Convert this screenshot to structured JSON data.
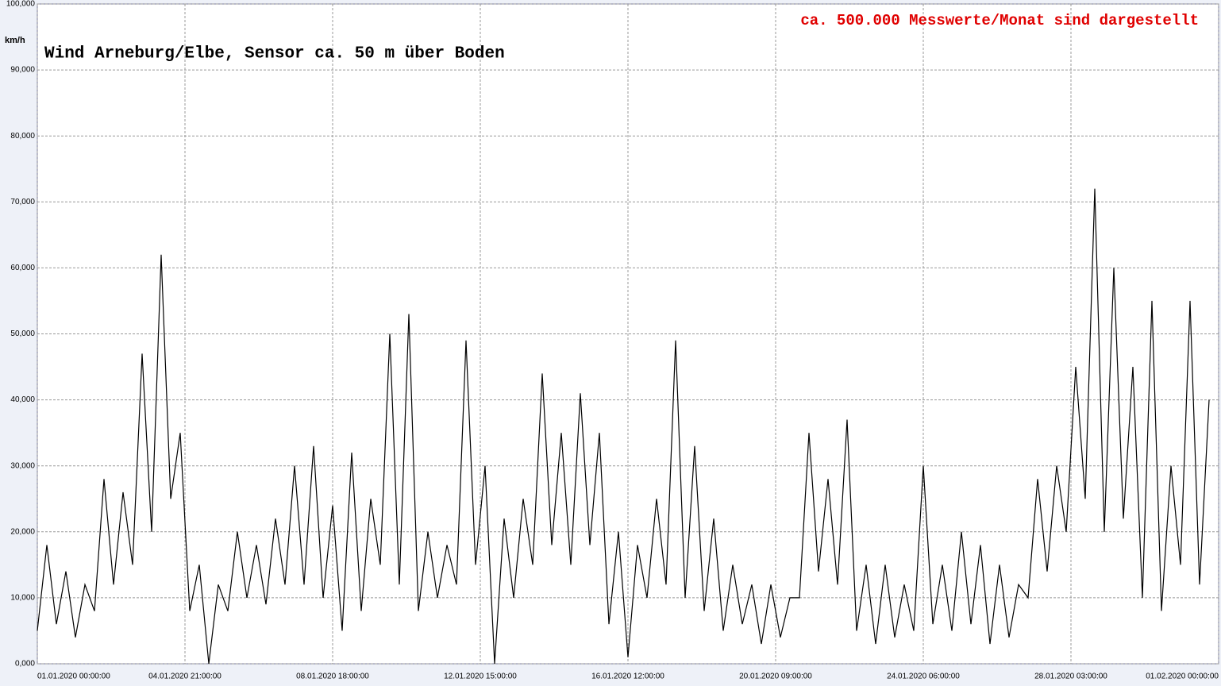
{
  "chart_data": {
    "type": "line",
    "title": "Wind  Arneburg/Elbe, Sensor ca. 50 m über Boden",
    "annotation": "ca. 500.000 Messwerte/Monat sind dargestellt",
    "y_label": "km/h",
    "grid": true,
    "x": [
      "2020-01-01T00:00",
      "2020-01-01T06:00",
      "2020-01-01T12:00",
      "2020-01-01T18:00",
      "2020-01-02T00:00",
      "2020-01-02T06:00",
      "2020-01-02T12:00",
      "2020-01-02T18:00",
      "2020-01-03T00:00",
      "2020-01-03T06:00",
      "2020-01-03T12:00",
      "2020-01-03T18:00",
      "2020-01-04T00:00",
      "2020-01-04T06:00",
      "2020-01-04T12:00",
      "2020-01-04T18:00",
      "2020-01-05T00:00",
      "2020-01-05T06:00",
      "2020-01-05T12:00",
      "2020-01-05T18:00",
      "2020-01-06T00:00",
      "2020-01-06T06:00",
      "2020-01-06T12:00",
      "2020-01-06T18:00",
      "2020-01-07T00:00",
      "2020-01-07T06:00",
      "2020-01-07T12:00",
      "2020-01-07T18:00",
      "2020-01-08T00:00",
      "2020-01-08T06:00",
      "2020-01-08T12:00",
      "2020-01-08T18:00",
      "2020-01-09T00:00",
      "2020-01-09T06:00",
      "2020-01-09T12:00",
      "2020-01-09T18:00",
      "2020-01-10T00:00",
      "2020-01-10T06:00",
      "2020-01-10T12:00",
      "2020-01-10T18:00",
      "2020-01-11T00:00",
      "2020-01-11T06:00",
      "2020-01-11T12:00",
      "2020-01-11T18:00",
      "2020-01-12T00:00",
      "2020-01-12T06:00",
      "2020-01-12T12:00",
      "2020-01-12T18:00",
      "2020-01-13T00:00",
      "2020-01-13T06:00",
      "2020-01-13T12:00",
      "2020-01-13T18:00",
      "2020-01-14T00:00",
      "2020-01-14T06:00",
      "2020-01-14T12:00",
      "2020-01-14T18:00",
      "2020-01-15T00:00",
      "2020-01-15T06:00",
      "2020-01-15T12:00",
      "2020-01-15T18:00",
      "2020-01-16T00:00",
      "2020-01-16T06:00",
      "2020-01-16T12:00",
      "2020-01-16T18:00",
      "2020-01-17T00:00",
      "2020-01-17T06:00",
      "2020-01-17T12:00",
      "2020-01-17T18:00",
      "2020-01-18T00:00",
      "2020-01-18T06:00",
      "2020-01-18T12:00",
      "2020-01-18T18:00",
      "2020-01-19T00:00",
      "2020-01-19T06:00",
      "2020-01-19T12:00",
      "2020-01-19T18:00",
      "2020-01-20T00:00",
      "2020-01-20T06:00",
      "2020-01-20T12:00",
      "2020-01-20T18:00",
      "2020-01-21T00:00",
      "2020-01-21T06:00",
      "2020-01-21T12:00",
      "2020-01-21T18:00",
      "2020-01-22T00:00",
      "2020-01-22T06:00",
      "2020-01-22T12:00",
      "2020-01-22T18:00",
      "2020-01-23T00:00",
      "2020-01-23T06:00",
      "2020-01-23T12:00",
      "2020-01-23T18:00",
      "2020-01-24T00:00",
      "2020-01-24T06:00",
      "2020-01-24T12:00",
      "2020-01-24T18:00",
      "2020-01-25T00:00",
      "2020-01-25T06:00",
      "2020-01-25T12:00",
      "2020-01-25T18:00",
      "2020-01-26T00:00",
      "2020-01-26T06:00",
      "2020-01-26T12:00",
      "2020-01-26T18:00",
      "2020-01-27T00:00",
      "2020-01-27T06:00",
      "2020-01-27T12:00",
      "2020-01-27T18:00",
      "2020-01-28T00:00",
      "2020-01-28T06:00",
      "2020-01-28T12:00",
      "2020-01-28T18:00",
      "2020-01-29T00:00",
      "2020-01-29T06:00",
      "2020-01-29T12:00",
      "2020-01-29T18:00",
      "2020-01-30T00:00",
      "2020-01-30T06:00",
      "2020-01-30T12:00",
      "2020-01-30T18:00",
      "2020-01-31T00:00",
      "2020-01-31T06:00",
      "2020-01-31T12:00",
      "2020-01-31T18:00"
    ],
    "series": [
      {
        "color": "#000000",
        "values": [
          5,
          18,
          6,
          14,
          4,
          12,
          8,
          28,
          12,
          26,
          15,
          47,
          20,
          62,
          25,
          35,
          8,
          15,
          0,
          12,
          8,
          20,
          10,
          18,
          9,
          22,
          12,
          30,
          12,
          33,
          10,
          24,
          5,
          32,
          8,
          25,
          15,
          50,
          12,
          53,
          8,
          20,
          10,
          18,
          12,
          49,
          15,
          30,
          0,
          22,
          10,
          25,
          15,
          44,
          18,
          35,
          15,
          41,
          18,
          35,
          6,
          20,
          1,
          18,
          10,
          25,
          12,
          49,
          10,
          33,
          8,
          22,
          5,
          15,
          6,
          12,
          3,
          12,
          4,
          10,
          10,
          35,
          14,
          28,
          12,
          37,
          5,
          15,
          3,
          15,
          4,
          12,
          5,
          30,
          6,
          15,
          5,
          20,
          6,
          18,
          3,
          15,
          4,
          12,
          10,
          28,
          14,
          30,
          20,
          45,
          25,
          72,
          20,
          60,
          22,
          45,
          10,
          55,
          8,
          30,
          15,
          55,
          12,
          40
        ]
      }
    ],
    "xlim": [
      "2020-01-01T00:00",
      "2020-02-01T00:00"
    ],
    "xticks": [
      {
        "value": "2020-01-01T00:00",
        "label": "01.01.2020  00:00:00"
      },
      {
        "value": "2020-01-04T21:00",
        "label": "04.01.2020  21:00:00"
      },
      {
        "value": "2020-01-08T18:00",
        "label": "08.01.2020  18:00:00"
      },
      {
        "value": "2020-01-12T15:00",
        "label": "12.01.2020  15:00:00"
      },
      {
        "value": "2020-01-16T12:00",
        "label": "16.01.2020  12:00:00"
      },
      {
        "value": "2020-01-20T09:00",
        "label": "20.01.2020  09:00:00"
      },
      {
        "value": "2020-01-24T06:00",
        "label": "24.01.2020  06:00:00"
      },
      {
        "value": "2020-01-28T03:00",
        "label": "28.01.2020  03:00:00"
      },
      {
        "value": "2020-02-01T00:00",
        "label": "01.02.2020  00:00:00"
      }
    ],
    "ylim": [
      0,
      100
    ],
    "yticks": [
      {
        "value": 0,
        "label": "0,000"
      },
      {
        "value": 10,
        "label": "10,000"
      },
      {
        "value": 20,
        "label": "20,000"
      },
      {
        "value": 30,
        "label": "30,000"
      },
      {
        "value": 40,
        "label": "40,000"
      },
      {
        "value": 50,
        "label": "50,000"
      },
      {
        "value": 60,
        "label": "60,000"
      },
      {
        "value": 70,
        "label": "70,000"
      },
      {
        "value": 80,
        "label": "80,000"
      },
      {
        "value": 90,
        "label": "90,000"
      },
      {
        "value": 100,
        "label": "100,000"
      }
    ]
  }
}
